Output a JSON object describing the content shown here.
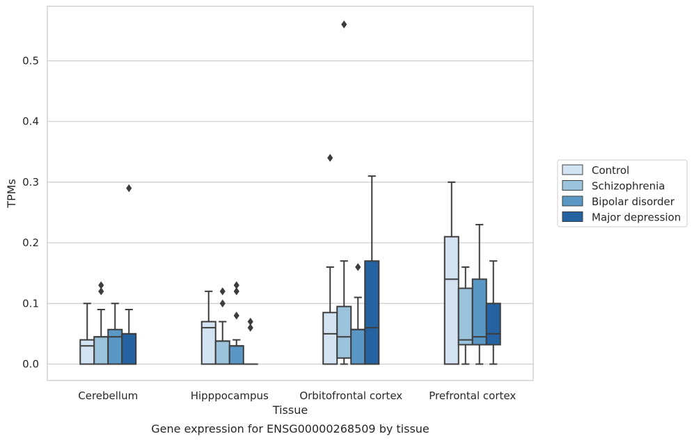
{
  "chart_data": {
    "type": "box",
    "xlabel": "Tissue",
    "ylabel": "TPMs",
    "caption": "Gene expression for ENSG00000268509 by tissue",
    "categories": [
      "Cerebellum",
      "Hipppocampus",
      "Orbitofrontal cortex",
      "Prefrontal cortex"
    ],
    "yticks": [
      "0.0",
      "0.1",
      "0.2",
      "0.3",
      "0.4",
      "0.5"
    ],
    "ylim": [
      -0.027,
      0.59
    ],
    "grid": "horizontal",
    "legend_position": "right",
    "series": [
      {
        "name": "Control",
        "color": "#d4e3f2",
        "boxes": [
          {
            "q1": 0.0,
            "median": 0.03,
            "q3": 0.04,
            "whisker_low": 0.0,
            "whisker_high": 0.1,
            "outliers": []
          },
          {
            "q1": 0.0,
            "median": 0.06,
            "q3": 0.07,
            "whisker_low": 0.0,
            "whisker_high": 0.12,
            "outliers": []
          },
          {
            "q1": 0.0,
            "median": 0.05,
            "q3": 0.085,
            "whisker_low": 0.0,
            "whisker_high": 0.16,
            "outliers": [
              0.34
            ]
          },
          {
            "q1": 0.0,
            "median": 0.14,
            "q3": 0.21,
            "whisker_low": 0.0,
            "whisker_high": 0.3,
            "outliers": []
          }
        ]
      },
      {
        "name": "Schizophrenia",
        "color": "#9bc4dc",
        "boxes": [
          {
            "q1": 0.0,
            "median": 0.045,
            "q3": 0.045,
            "whisker_low": 0.0,
            "whisker_high": 0.09,
            "outliers": [
              0.12,
              0.13
            ]
          },
          {
            "q1": 0.0,
            "median": 0.038,
            "q3": 0.038,
            "whisker_low": 0.0,
            "whisker_high": 0.07,
            "outliers": [
              0.1,
              0.12
            ]
          },
          {
            "q1": 0.01,
            "median": 0.045,
            "q3": 0.095,
            "whisker_low": 0.0,
            "whisker_high": 0.17,
            "outliers": [
              0.56
            ]
          },
          {
            "q1": 0.032,
            "median": 0.04,
            "q3": 0.125,
            "whisker_low": 0.0,
            "whisker_high": 0.16,
            "outliers": []
          }
        ]
      },
      {
        "name": "Bipolar disorder",
        "color": "#5b97c4",
        "boxes": [
          {
            "q1": 0.0,
            "median": 0.045,
            "q3": 0.057,
            "whisker_low": 0.0,
            "whisker_high": 0.1,
            "outliers": []
          },
          {
            "q1": 0.0,
            "median": 0.03,
            "q3": 0.03,
            "whisker_low": 0.0,
            "whisker_high": 0.04,
            "outliers": [
              0.08,
              0.12,
              0.13
            ]
          },
          {
            "q1": 0.0,
            "median": 0.057,
            "q3": 0.057,
            "whisker_low": 0.0,
            "whisker_high": 0.11,
            "outliers": [
              0.16
            ]
          },
          {
            "q1": 0.032,
            "median": 0.045,
            "q3": 0.14,
            "whisker_low": 0.0,
            "whisker_high": 0.23,
            "outliers": []
          }
        ]
      },
      {
        "name": "Major depression",
        "color": "#2562a1",
        "boxes": [
          {
            "q1": 0.0,
            "median": 0.05,
            "q3": 0.05,
            "whisker_low": 0.0,
            "whisker_high": 0.09,
            "outliers": [
              0.29
            ]
          },
          {
            "q1": 0.0,
            "median": 0.0,
            "q3": 0.0,
            "whisker_low": 0.0,
            "whisker_high": 0.0,
            "outliers": [
              0.06,
              0.07
            ]
          },
          {
            "q1": 0.0,
            "median": 0.06,
            "q3": 0.17,
            "whisker_low": 0.0,
            "whisker_high": 0.31,
            "outliers": []
          },
          {
            "q1": 0.032,
            "median": 0.05,
            "q3": 0.1,
            "whisker_low": 0.0,
            "whisker_high": 0.17,
            "outliers": []
          }
        ]
      }
    ]
  }
}
